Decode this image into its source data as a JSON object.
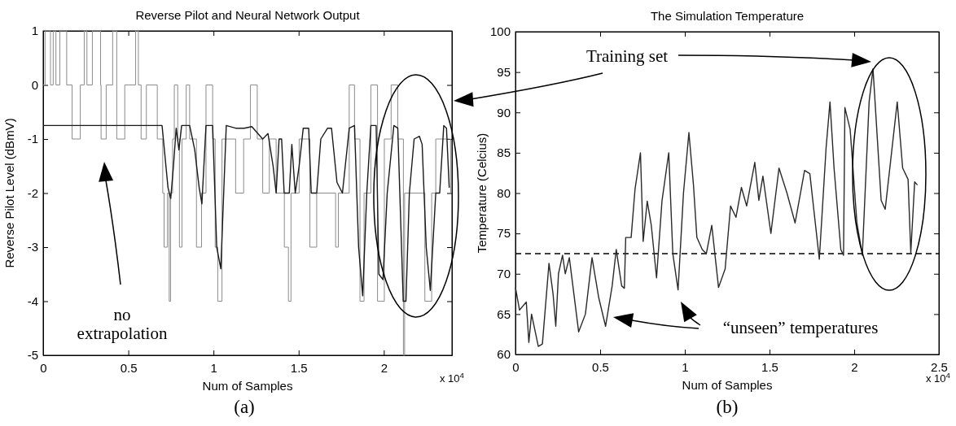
{
  "chart_data": [
    {
      "type": "line",
      "title": "Reverse Pilot and Neural Network Output",
      "xlabel": "Num of Samples",
      "ylabel": "Reverse Pilot Level (dBmV)",
      "xlim": [
        0,
        2.4
      ],
      "ylim": [
        -5,
        1
      ],
      "xticks": [
        0,
        0.5,
        1,
        1.5,
        2
      ],
      "yticks": [
        -5,
        -4,
        -3,
        -2,
        -1,
        0,
        1
      ],
      "series": [
        {
          "type": "step",
          "color": "#8c8c8c",
          "x": [
            0,
            0.011,
            0.043,
            0.059,
            0.075,
            0.098,
            0.138,
            0.17,
            0.218,
            0.241,
            0.257,
            0.289,
            0.337,
            0.34,
            0.37,
            0.408,
            0.432,
            0.479,
            0.543,
            0.559,
            0.575,
            0.606,
            0.67,
            0.702,
            0.71,
            0.73,
            0.74,
            0.748,
            0.76,
            0.77,
            0.79,
            0.8,
            0.815,
            0.84,
            0.86,
            0.9,
            0.93,
            0.956,
            0.995,
            1.01,
            1.025,
            1.05,
            1.13,
            1.177,
            1.217,
            1.257,
            1.289,
            1.328,
            1.368,
            1.416,
            1.44,
            1.455,
            1.503,
            1.566,
            1.606,
            1.717,
            1.733,
            1.797,
            1.828,
            1.86,
            1.884,
            1.924,
            1.963,
            2.003,
            2.043,
            2.082,
            2.115,
            2.122,
            2.241,
            2.281,
            2.305,
            2.392
          ],
          "values": [
            0,
            1,
            0,
            1,
            0,
            1,
            0,
            -1,
            0,
            1,
            0,
            1,
            0,
            -1,
            0,
            1,
            -1,
            0,
            1,
            0,
            -1,
            0,
            -1,
            -2,
            -3,
            -2,
            -4,
            -2,
            -1,
            0,
            -1,
            -3,
            -1,
            0,
            -1,
            -3,
            -2,
            0,
            -1,
            -3,
            -4,
            -1,
            -2,
            -1,
            0,
            -1,
            -2,
            -1,
            -2,
            -3,
            -4,
            -2,
            -1,
            -3,
            -2,
            -3,
            -2,
            0,
            -1,
            -4,
            -2,
            0,
            -4,
            -1,
            0,
            -1,
            -5,
            -2,
            -4,
            -2,
            -1,
            -2
          ]
        },
        {
          "type": "line",
          "color": "#1a1a1a",
          "x": [
            0,
            0.698,
            0.733,
            0.749,
            0.765,
            0.781,
            0.797,
            0.813,
            0.86,
            0.89,
            0.916,
            0.932,
            0.956,
            0.995,
            1.019,
            1.043,
            1.075,
            1.13,
            1.18,
            1.225,
            1.289,
            1.32,
            1.35,
            1.368,
            1.385,
            1.4,
            1.415,
            1.445,
            1.46,
            1.48,
            1.503,
            1.527,
            1.559,
            1.574,
            1.606,
            1.63,
            1.67,
            1.693,
            1.725,
            1.757,
            1.797,
            1.828,
            1.852,
            1.876,
            1.9,
            1.924,
            1.955,
            1.971,
            1.995,
            2.02,
            2.059,
            2.082,
            2.114,
            2.13,
            2.15,
            2.178,
            2.209,
            2.225,
            2.249,
            2.273,
            2.305,
            2.328,
            2.352,
            2.368,
            2.384
          ],
          "values": [
            -0.75,
            -0.75,
            -1.9,
            -2.1,
            -1.5,
            -0.8,
            -1.2,
            -0.75,
            -0.75,
            -1.2,
            -1.9,
            -2.2,
            -0.75,
            -0.75,
            -3,
            -3.4,
            -0.75,
            -0.8,
            -0.8,
            -0.77,
            -1,
            -0.9,
            -1.5,
            -2,
            -1,
            -1,
            -2,
            -2,
            -1.1,
            -2,
            -1.5,
            -0.8,
            -0.8,
            -2,
            -2,
            -1,
            -0.8,
            -0.8,
            -1.8,
            -2,
            -0.8,
            -0.75,
            -3,
            -3.9,
            -2,
            -0.75,
            -0.75,
            -3.5,
            -3.6,
            -2,
            -0.75,
            -0.8,
            -4,
            -4,
            -2,
            -1,
            -0.95,
            -1.1,
            -3,
            -3.8,
            -2,
            -2,
            -0.75,
            -0.8,
            -1.9
          ]
        }
      ],
      "annotations": [
        "no extrapolation",
        "x 10$^{4}$",
        "(a)"
      ]
    },
    {
      "type": "line",
      "title": "The Simulation Temperature",
      "xlabel": "Num of Samples",
      "ylabel": "Temperature (Celcius)",
      "xlim": [
        0,
        2.5
      ],
      "ylim": [
        60,
        100
      ],
      "xticks": [
        0,
        0.5,
        1,
        1.5,
        2,
        2.5
      ],
      "yticks": [
        60,
        65,
        70,
        75,
        80,
        85,
        90,
        95,
        100
      ],
      "series": [
        {
          "color": "#2a2a2a",
          "x": [
            0,
            0.024,
            0.064,
            0.079,
            0.095,
            0.135,
            0.159,
            0.198,
            0.222,
            0.238,
            0.254,
            0.278,
            0.294,
            0.318,
            0.373,
            0.413,
            0.452,
            0.492,
            0.532,
            0.571,
            0.595,
            0.627,
            0.643,
            0.651,
            0.683,
            0.706,
            0.738,
            0.754,
            0.778,
            0.802,
            0.833,
            0.865,
            0.905,
            0.929,
            0.96,
            0.992,
            1.024,
            1.051,
            1.071,
            1.103,
            1.127,
            1.159,
            1.199,
            1.238,
            1.27,
            1.302,
            1.334,
            1.365,
            1.413,
            1.437,
            1.461,
            1.508,
            1.556,
            1.603,
            1.651,
            1.707,
            1.738,
            1.794,
            1.834,
            1.857,
            1.881,
            1.921,
            1.937,
            1.945,
            1.976,
            2.016,
            2.048,
            2.088,
            2.111,
            2.159,
            2.183,
            2.254,
            2.286,
            2.318,
            2.334,
            2.357,
            2.373
          ],
          "values": [
            68.3,
            65.5,
            66.5,
            61.5,
            65,
            61,
            61.3,
            71.3,
            67.5,
            63.5,
            70,
            72.3,
            70,
            72,
            62.8,
            65,
            72,
            67,
            63.5,
            68.5,
            73,
            68.5,
            68.2,
            74.5,
            74.5,
            80.5,
            85,
            74,
            79,
            76,
            69.5,
            79,
            85,
            72.5,
            68,
            80,
            87.5,
            81,
            74.5,
            73,
            72.5,
            76,
            68.3,
            70.6,
            78.4,
            77,
            80.7,
            78.4,
            83.8,
            79.1,
            82.1,
            75,
            83.1,
            80,
            76.3,
            82.8,
            82.4,
            71.8,
            85.6,
            91.3,
            83.1,
            73,
            72.3,
            90.6,
            87.9,
            76.3,
            72.3,
            91.3,
            95.4,
            79.1,
            78,
            91.3,
            83.1,
            81.7,
            72.6,
            81.4,
            81
          ]
        }
      ],
      "ref_lines": [
        {
          "axis": "y",
          "value": 72.5,
          "line_style": "dashed",
          "color": "#000000"
        }
      ],
      "annotations": [
        "Training set",
        "“unseen” temperatures",
        "x 10$^{4}$",
        "(b)"
      ]
    }
  ]
}
